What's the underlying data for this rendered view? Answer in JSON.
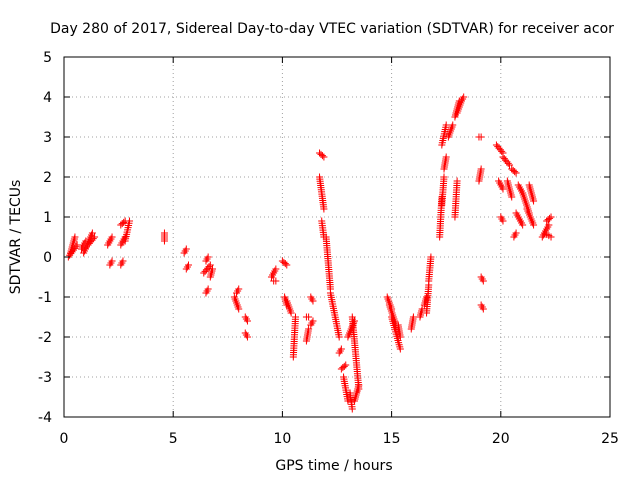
{
  "chart_data": {
    "type": "scatter",
    "title": "Day 280 of 2017, Sidereal Day-to-day VTEC variation (SDTVAR) for receiver acor",
    "xlabel": "GPS time / hours",
    "ylabel": "SDTVAR / TECUs",
    "xlim": [
      0,
      25
    ],
    "ylim": [
      -4,
      5
    ],
    "xticks": [
      0,
      5,
      10,
      15,
      20,
      25
    ],
    "yticks": [
      -4,
      -3,
      -2,
      -1,
      0,
      1,
      2,
      3,
      4,
      5
    ],
    "grid": true,
    "marker": "plus",
    "color": "#ff0000",
    "segments": [
      [
        0.2,
        0.0,
        0.6,
        0.3
      ],
      [
        0.3,
        0.1,
        0.5,
        0.5
      ],
      [
        0.8,
        0.2,
        1.0,
        0.4
      ],
      [
        0.9,
        0.1,
        1.3,
        0.6
      ],
      [
        1.1,
        0.3,
        1.4,
        0.5
      ],
      [
        2.0,
        0.3,
        2.2,
        0.5
      ],
      [
        2.1,
        -0.2,
        2.2,
        -0.1
      ],
      [
        2.6,
        0.3,
        2.8,
        0.5
      ],
      [
        2.6,
        -0.2,
        2.7,
        -0.1
      ],
      [
        2.6,
        0.8,
        2.8,
        0.9
      ],
      [
        2.8,
        0.4,
        3.0,
        0.9
      ],
      [
        4.6,
        0.4,
        4.6,
        0.6
      ],
      [
        5.5,
        0.1,
        5.6,
        0.2
      ],
      [
        5.6,
        -0.3,
        5.7,
        -0.2
      ],
      [
        6.4,
        -0.4,
        6.7,
        -0.2
      ],
      [
        6.5,
        -0.1,
        6.6,
        0.0
      ],
      [
        6.5,
        -0.9,
        6.6,
        -0.8
      ],
      [
        6.7,
        -0.5,
        6.8,
        -0.3
      ],
      [
        7.9,
        -0.9,
        8.0,
        -0.8
      ],
      [
        7.8,
        -1.0,
        8.0,
        -1.3
      ],
      [
        8.3,
        -1.9,
        8.4,
        -2.0
      ],
      [
        8.3,
        -1.5,
        8.4,
        -1.6
      ],
      [
        9.5,
        -0.5,
        9.7,
        -0.3
      ],
      [
        9.6,
        -0.6,
        9.7,
        -0.6
      ],
      [
        10.0,
        -0.1,
        10.2,
        -0.2
      ],
      [
        10.1,
        -1.0,
        10.2,
        -1.2
      ],
      [
        10.2,
        -1.1,
        10.4,
        -1.4
      ],
      [
        10.5,
        -2.5,
        10.6,
        -1.5
      ],
      [
        11.1,
        -1.5,
        11.2,
        -1.5
      ],
      [
        11.1,
        -2.1,
        11.2,
        -1.8
      ],
      [
        11.3,
        -1.0,
        11.4,
        -1.1
      ],
      [
        11.3,
        -1.7,
        11.4,
        -1.6
      ],
      [
        11.7,
        2.6,
        11.9,
        2.5
      ],
      [
        11.7,
        2.0,
        11.9,
        1.2
      ],
      [
        11.8,
        0.9,
        11.9,
        0.5
      ],
      [
        12.0,
        0.5,
        12.2,
        -0.8
      ],
      [
        12.2,
        -0.9,
        12.6,
        -2.0
      ],
      [
        12.6,
        -2.4,
        12.7,
        -2.3
      ],
      [
        12.7,
        -2.8,
        12.9,
        -2.7
      ],
      [
        12.8,
        -3.0,
        13.0,
        -3.6
      ],
      [
        13.1,
        -3.4,
        13.2,
        -3.8
      ],
      [
        13.2,
        -1.5,
        13.5,
        -3.3
      ],
      [
        13.3,
        -3.6,
        13.5,
        -3.2
      ],
      [
        13.0,
        -2.0,
        13.3,
        -1.6
      ],
      [
        14.8,
        -1.0,
        15.0,
        -1.3
      ],
      [
        14.9,
        -1.2,
        15.2,
        -1.7
      ],
      [
        15.0,
        -1.5,
        15.4,
        -2.3
      ],
      [
        15.3,
        -1.7,
        15.4,
        -2.0
      ],
      [
        15.9,
        -1.8,
        16.0,
        -1.5
      ],
      [
        16.3,
        -1.5,
        16.4,
        -1.3
      ],
      [
        16.5,
        -1.2,
        16.6,
        -1.0
      ],
      [
        16.6,
        -1.4,
        16.7,
        -0.7
      ],
      [
        16.7,
        -0.6,
        16.8,
        0.0
      ],
      [
        17.2,
        0.5,
        17.3,
        1.5
      ],
      [
        17.3,
        1.3,
        17.4,
        2.0
      ],
      [
        17.3,
        2.8,
        17.5,
        3.3
      ],
      [
        17.4,
        2.2,
        17.5,
        2.5
      ],
      [
        17.6,
        3.0,
        17.8,
        3.3
      ],
      [
        17.9,
        1.0,
        18.0,
        1.9
      ],
      [
        17.9,
        3.5,
        18.1,
        3.9
      ],
      [
        18.0,
        3.6,
        18.2,
        3.9
      ],
      [
        18.2,
        3.9,
        18.3,
        4.0
      ],
      [
        19.0,
        3.0,
        19.1,
        3.0
      ],
      [
        19.0,
        1.9,
        19.1,
        2.2
      ],
      [
        19.1,
        -1.2,
        19.2,
        -1.3
      ],
      [
        19.1,
        -0.5,
        19.2,
        -0.6
      ],
      [
        19.8,
        2.8,
        20.1,
        2.6
      ],
      [
        19.9,
        1.9,
        20.1,
        1.7
      ],
      [
        20.0,
        1.0,
        20.1,
        0.9
      ],
      [
        20.1,
        2.5,
        20.4,
        2.3
      ],
      [
        20.3,
        1.9,
        20.5,
        1.5
      ],
      [
        20.5,
        2.2,
        20.7,
        2.1
      ],
      [
        20.6,
        0.5,
        20.7,
        0.6
      ],
      [
        20.7,
        1.1,
        21.0,
        0.8
      ],
      [
        20.8,
        1.8,
        21.0,
        1.6
      ],
      [
        21.0,
        1.6,
        21.3,
        1.1
      ],
      [
        21.2,
        1.2,
        21.5,
        0.8
      ],
      [
        21.3,
        1.8,
        21.5,
        1.4
      ],
      [
        21.9,
        0.5,
        22.2,
        0.8
      ],
      [
        22.0,
        0.6,
        22.3,
        0.5
      ],
      [
        22.1,
        0.9,
        22.3,
        1.0
      ]
    ]
  }
}
